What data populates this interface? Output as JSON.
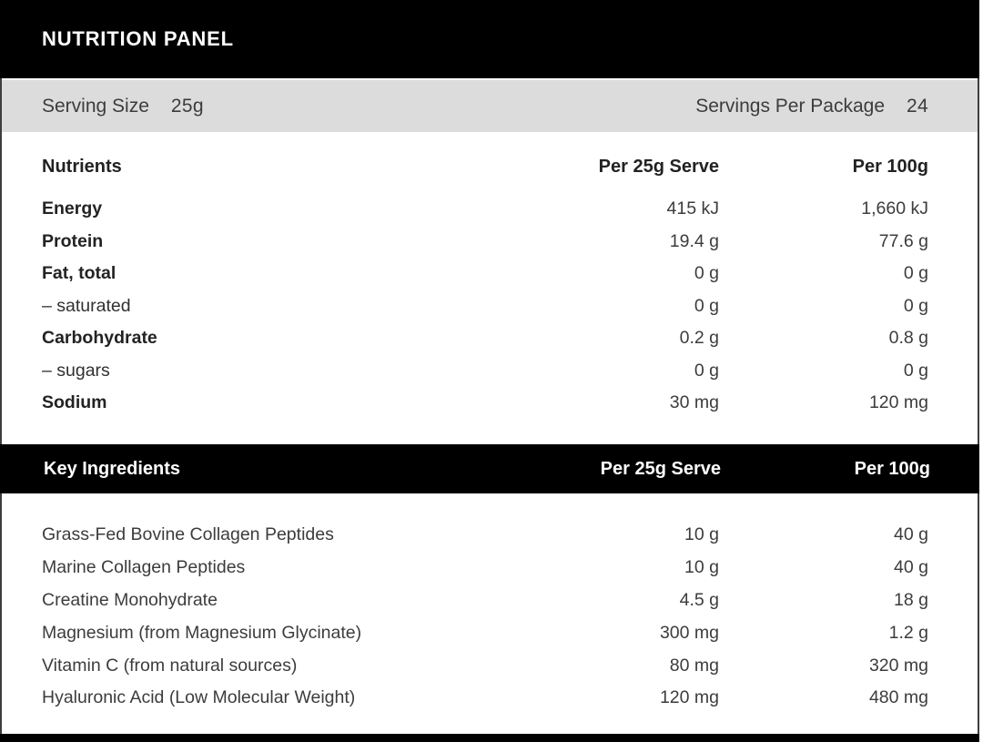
{
  "colors": {
    "bar-black": "#000000",
    "serving-gray": "#dcdcdc",
    "text-dark": "#282828",
    "text-mid": "#3c3c3c",
    "border-gray": "#3e3e3e"
  },
  "header": {
    "title": "NUTRITION PANEL"
  },
  "serving_bar": {
    "serving_size_label": "Serving Size",
    "serving_size_value": "25g",
    "servings_per_package_label": "Servings Per Package",
    "servings_per_package_value": "24"
  },
  "nutrients_table": {
    "headers": {
      "name": "Nutrients",
      "per_serve": "Per 25g Serve",
      "per_100g": "Per 100g"
    },
    "rows": [
      {
        "name": "Energy",
        "per_serve": "415 kJ",
        "per_100g": "1,660 kJ"
      },
      {
        "name": "Protein",
        "per_serve": "19.4 g",
        "per_100g": "77.6 g"
      },
      {
        "name": "Fat, total",
        "per_serve": "0 g",
        "per_100g": "0 g"
      },
      {
        "name": "– saturated",
        "per_serve": "0 g",
        "per_100g": "0 g"
      },
      {
        "name": "Carbohydrate",
        "per_serve": "0.2 g",
        "per_100g": "0.8 g"
      },
      {
        "name": "– sugars",
        "per_serve": "0 g",
        "per_100g": "0 g"
      },
      {
        "name": "Sodium",
        "per_serve": "30 mg",
        "per_100g": "120 mg"
      }
    ]
  },
  "ingredients_table": {
    "headers": {
      "name": "Key Ingredients",
      "per_serve": "Per 25g Serve",
      "per_100g": "Per 100g"
    },
    "rows": [
      {
        "name": "Grass-Fed Bovine Collagen Peptides",
        "per_serve": "10 g",
        "per_100g": "40 g"
      },
      {
        "name": "Marine Collagen Peptides",
        "per_serve": "10 g",
        "per_100g": "40 g"
      },
      {
        "name": "Creatine Monohydrate",
        "per_serve": "4.5 g",
        "per_100g": "18 g"
      },
      {
        "name": "Magnesium (from Magnesium Glycinate)",
        "per_serve": "300 mg",
        "per_100g": "1.2 g"
      },
      {
        "name": "Vitamin C (from natural sources)",
        "per_serve": "80 mg",
        "per_100g": "320 mg"
      },
      {
        "name": "Hyaluronic Acid (Low Molecular Weight)",
        "per_serve": "120 mg",
        "per_100g": "480 mg"
      }
    ]
  }
}
